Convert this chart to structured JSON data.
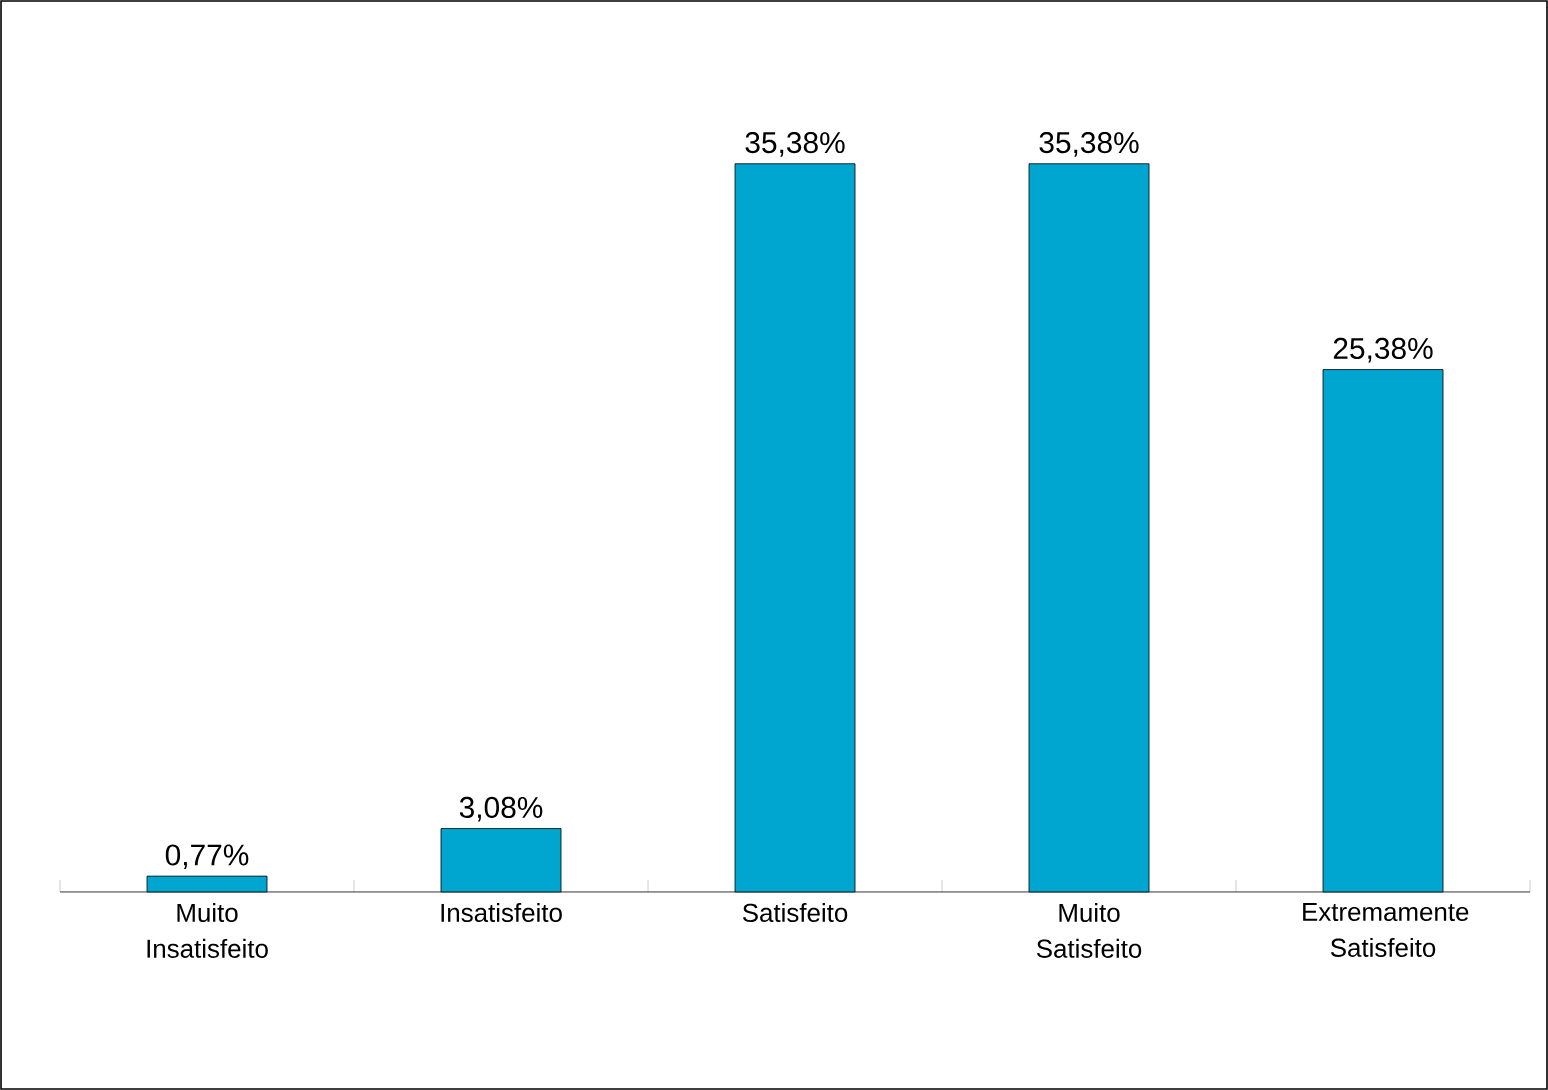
{
  "chart_data": {
    "type": "bar",
    "categories": [
      "Muito Insatisfeito",
      "Insatisfeito",
      "Satisfeito",
      "Muito Satisfeito",
      "Extremamente Satisfeito"
    ],
    "values": [
      0.77,
      3.08,
      35.38,
      35.38,
      25.38
    ],
    "value_labels": [
      "0,77%",
      "3,08%",
      "35,38%",
      "35,38%",
      "25,38%"
    ],
    "color": "#00a6d0"
  }
}
